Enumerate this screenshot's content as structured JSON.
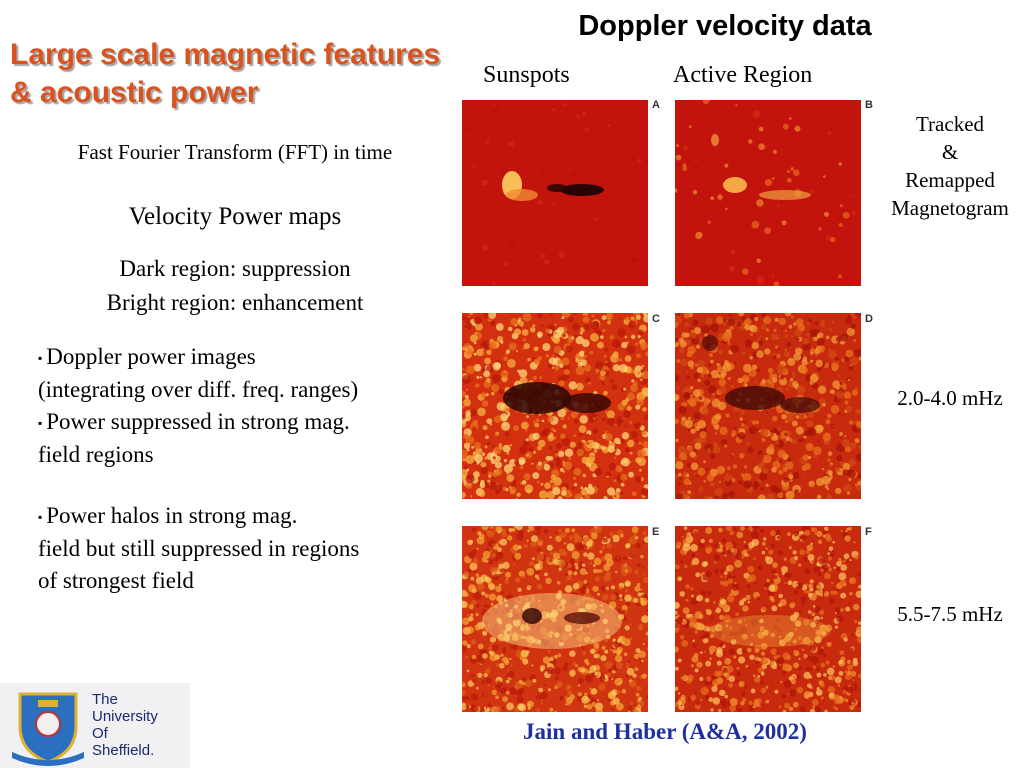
{
  "slide": {
    "title": "Large scale magnetic features & acoustic power",
    "right_title": "Doppler velocity data",
    "column_labels": {
      "sunspots": "Sunspots",
      "active_region": "Active Region"
    },
    "fft_text": "Fast Fourier Transform (FFT) in time",
    "velocity_power_maps": "Velocity Power maps",
    "dark_region": "Dark region: suppression",
    "bright_region": "Bright region: enhancement",
    "bullets_block1": [
      {
        "type": "bullet",
        "text": "Doppler power images"
      },
      {
        "type": "line",
        "text": "(integrating over diff. freq. ranges)"
      },
      {
        "type": "bullet",
        "text": "Power suppressed in strong mag."
      },
      {
        "type": "line",
        "text": "field regions"
      }
    ],
    "bullets_block2": [
      {
        "type": "bullet",
        "text": "Power halos in strong mag."
      },
      {
        "type": "line",
        "text": "field but still suppressed in regions"
      },
      {
        "type": "line",
        "text": "of strongest field"
      }
    ],
    "side_labels": {
      "tracked": [
        "Tracked",
        "&",
        "Remapped",
        "Magnetogram"
      ],
      "freq1": "2.0-4.0 mHz",
      "freq2": "5.5-7.5 mHz"
    },
    "panel_letters": [
      "A",
      "B",
      "C",
      "D",
      "E",
      "F"
    ],
    "citation": "Jain and Haber (A&A, 2002)",
    "logo": {
      "lines": [
        "The",
        "University",
        "Of",
        "Sheffield."
      ]
    },
    "colors": {
      "title": "#d9531e",
      "citation": "#1f2f9e",
      "panel_bg": "#c2140d"
    }
  }
}
